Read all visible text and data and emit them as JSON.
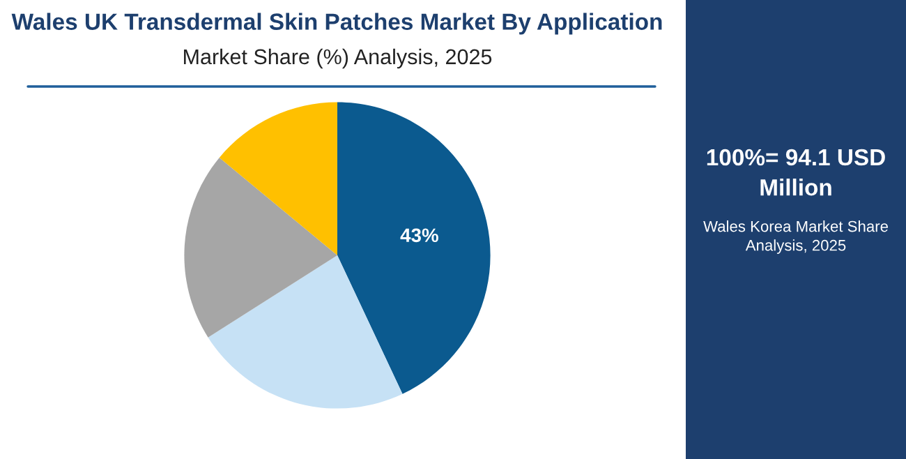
{
  "chart_data": {
    "type": "pie",
    "title": "Wales UK Transdermal Skin Patches Market By Application",
    "subtitle": "Market Share (%) Analysis, 2025",
    "categories": [
      null,
      null,
      null,
      null
    ],
    "values": [
      43,
      23,
      20,
      14
    ],
    "colors": [
      "#0b5a8f",
      "#c6e1f5",
      "#a6a6a6",
      "#ffc000"
    ],
    "value_labels": [
      "43%",
      null,
      null,
      null
    ],
    "annotations": [
      "100%= 94.1 USD Million",
      "Wales Korea Market Share Analysis, 2025"
    ]
  }
}
